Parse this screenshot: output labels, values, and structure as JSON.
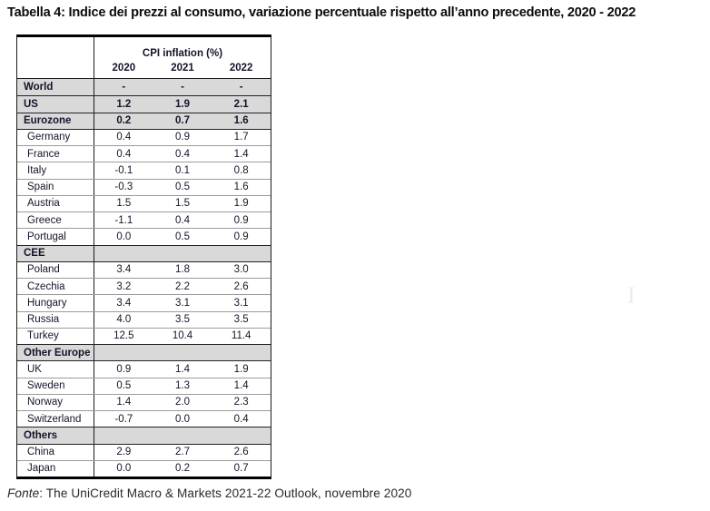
{
  "title": "Tabella 4: Indice dei prezzi al consumo, variazione percentuale rispetto all’anno precedente, 2020 - 2022",
  "table": {
    "header": {
      "group_label": "CPI inflation (%)",
      "years": [
        "2020",
        "2021",
        "2022"
      ]
    },
    "rows": [
      {
        "label": "World",
        "type": "region",
        "values": [
          "-",
          "-",
          "-"
        ]
      },
      {
        "label": "US",
        "type": "region",
        "values": [
          "1.2",
          "1.9",
          "2.1"
        ]
      },
      {
        "label": "Eurozone",
        "type": "region",
        "values": [
          "0.2",
          "0.7",
          "1.6"
        ]
      },
      {
        "label": "Germany",
        "type": "country",
        "values": [
          "0.4",
          "0.9",
          "1.7"
        ]
      },
      {
        "label": "France",
        "type": "country",
        "values": [
          "0.4",
          "0.4",
          "1.4"
        ]
      },
      {
        "label": "Italy",
        "type": "country",
        "values": [
          "-0.1",
          "0.1",
          "0.8"
        ]
      },
      {
        "label": "Spain",
        "type": "country",
        "values": [
          "-0.3",
          "0.5",
          "1.6"
        ]
      },
      {
        "label": "Austria",
        "type": "country",
        "values": [
          "1.5",
          "1.5",
          "1.9"
        ]
      },
      {
        "label": "Greece",
        "type": "country",
        "values": [
          "-1.1",
          "0.4",
          "0.9"
        ]
      },
      {
        "label": "Portugal",
        "type": "country",
        "values": [
          "0.0",
          "0.5",
          "0.9"
        ]
      },
      {
        "label": "CEE",
        "type": "section",
        "values": [
          "",
          "",
          ""
        ]
      },
      {
        "label": "Poland",
        "type": "country",
        "values": [
          "3.4",
          "1.8",
          "3.0"
        ]
      },
      {
        "label": "Czechia",
        "type": "country",
        "values": [
          "3.2",
          "2.2",
          "2.6"
        ]
      },
      {
        "label": "Hungary",
        "type": "country",
        "values": [
          "3.4",
          "3.1",
          "3.1"
        ]
      },
      {
        "label": "Russia",
        "type": "country",
        "values": [
          "4.0",
          "3.5",
          "3.5"
        ]
      },
      {
        "label": "Turkey",
        "type": "country",
        "values": [
          "12.5",
          "10.4",
          "11.4"
        ]
      },
      {
        "label": "Other Europe",
        "type": "section",
        "values": [
          "",
          "",
          ""
        ]
      },
      {
        "label": "UK",
        "type": "country",
        "values": [
          "0.9",
          "1.4",
          "1.9"
        ]
      },
      {
        "label": "Sweden",
        "type": "country",
        "values": [
          "0.5",
          "1.3",
          "1.4"
        ]
      },
      {
        "label": "Norway",
        "type": "country",
        "values": [
          "1.4",
          "2.0",
          "2.3"
        ]
      },
      {
        "label": "Switzerland",
        "type": "country",
        "values": [
          "-0.7",
          "0.0",
          "0.4"
        ]
      },
      {
        "label": "Others",
        "type": "section",
        "values": [
          "",
          "",
          ""
        ]
      },
      {
        "label": "China",
        "type": "country",
        "values": [
          "2.9",
          "2.7",
          "2.6"
        ]
      },
      {
        "label": "Japan",
        "type": "country",
        "values": [
          "0.0",
          "0.2",
          "0.7"
        ]
      }
    ]
  },
  "footer": {
    "source_label": "Fonte",
    "source_rest": ": The UniCredit Macro & Markets 2021-22 Outlook, novembre 2020"
  },
  "artifact_glyph": "I",
  "colors": {
    "row_shade": "#d9d9d9",
    "border_dark": "#1b1b1b",
    "table_text": "#14142a"
  }
}
